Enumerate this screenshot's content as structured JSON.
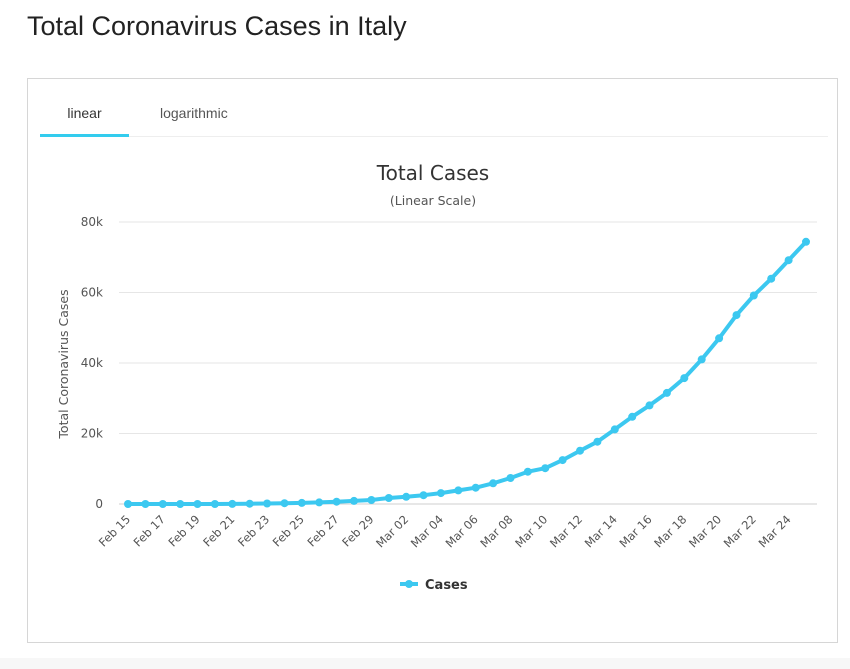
{
  "page": {
    "title": "Total Coronavirus Cases in Italy"
  },
  "tabs": [
    {
      "label": "linear",
      "active": true
    },
    {
      "label": "logarithmic",
      "active": false
    }
  ],
  "colors": {
    "accent": "#33ccee",
    "series_line": "#3cc8f0",
    "grid": "#e6e6e6",
    "text": "#333333",
    "axis_text": "#555555"
  },
  "chart_data": {
    "type": "line",
    "title": "Total Cases",
    "subtitle": "(Linear Scale)",
    "ylabel": "Total Coronavirus Cases",
    "xlabel": "",
    "ylim": [
      0,
      80000
    ],
    "yticks": [
      0,
      20000,
      40000,
      60000,
      80000
    ],
    "ytick_labels": [
      "0",
      "20k",
      "40k",
      "60k",
      "80k"
    ],
    "grid": true,
    "legend": {
      "position": "bottom-center"
    },
    "x": [
      "Feb 15",
      "Feb 16",
      "Feb 17",
      "Feb 18",
      "Feb 19",
      "Feb 20",
      "Feb 21",
      "Feb 22",
      "Feb 23",
      "Feb 24",
      "Feb 25",
      "Feb 26",
      "Feb 27",
      "Feb 28",
      "Feb 29",
      "Mar 01",
      "Mar 02",
      "Mar 03",
      "Mar 04",
      "Mar 05",
      "Mar 06",
      "Mar 07",
      "Mar 08",
      "Mar 09",
      "Mar 10",
      "Mar 11",
      "Mar 12",
      "Mar 13",
      "Mar 14",
      "Mar 15",
      "Mar 16",
      "Mar 17",
      "Mar 18",
      "Mar 19",
      "Mar 20",
      "Mar 21",
      "Mar 22",
      "Mar 23",
      "Mar 24",
      "Mar 25"
    ],
    "xtick_labels": [
      "Feb 15",
      "Feb 17",
      "Feb 19",
      "Feb 21",
      "Feb 23",
      "Feb 25",
      "Feb 27",
      "Feb 29",
      "Mar 02",
      "Mar 04",
      "Mar 06",
      "Mar 08",
      "Mar 10",
      "Mar 12",
      "Mar 14",
      "Mar 16",
      "Mar 18",
      "Mar 20",
      "Mar 22",
      "Mar 24"
    ],
    "series": [
      {
        "name": "Cases",
        "color": "#3cc8f0",
        "values": [
          3,
          3,
          3,
          3,
          3,
          3,
          20,
          79,
          150,
          227,
          320,
          445,
          650,
          888,
          1128,
          1694,
          2036,
          2502,
          3089,
          3858,
          4636,
          5883,
          7375,
          9172,
          10149,
          12462,
          15113,
          17660,
          21157,
          24747,
          27980,
          31506,
          35713,
          41035,
          47021,
          53578,
          59138,
          63927,
          69176,
          74386
        ]
      }
    ]
  }
}
